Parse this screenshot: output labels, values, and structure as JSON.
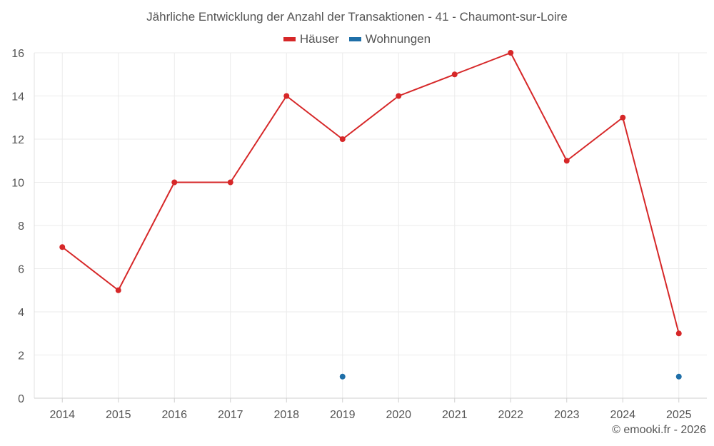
{
  "chart_data": {
    "type": "line",
    "title": "Jährliche Entwicklung der Anzahl der Transaktionen - 41 - Chaumont-sur-Loire",
    "categories": [
      "2014",
      "2015",
      "2016",
      "2017",
      "2018",
      "2019",
      "2020",
      "2021",
      "2022",
      "2023",
      "2024",
      "2025"
    ],
    "series": [
      {
        "name": "Häuser",
        "color": "#d62728",
        "values": [
          7,
          5,
          10,
          10,
          14,
          12,
          14,
          15,
          16,
          11,
          13,
          3
        ]
      },
      {
        "name": "Wohnungen",
        "color": "#1f6fa8",
        "values": [
          null,
          null,
          null,
          null,
          null,
          1,
          null,
          null,
          null,
          null,
          null,
          1
        ]
      }
    ],
    "ylim": [
      0,
      16
    ],
    "yticks": [
      0,
      2,
      4,
      6,
      8,
      10,
      12,
      14,
      16
    ],
    "xlabel": "",
    "ylabel": "",
    "grid": true,
    "legend": "top-center"
  },
  "credit": "© emooki.fr - 2026"
}
